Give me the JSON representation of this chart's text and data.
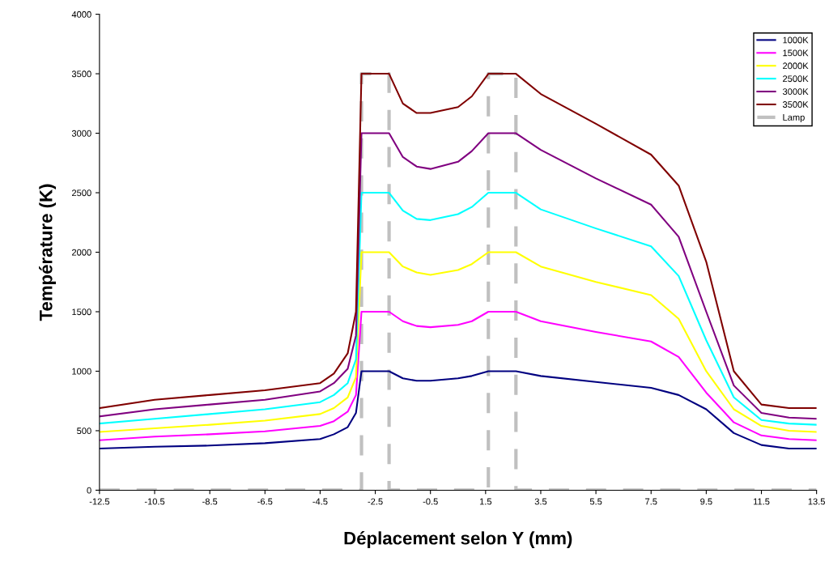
{
  "chart_data": {
    "type": "line",
    "xlabel": "Déplacement selon Y (mm)",
    "ylabel": "Température (K)",
    "x": [
      -12.5,
      -10.5,
      -8.5,
      -6.5,
      -4.5,
      -4,
      -3.5,
      -3.2,
      -3,
      -2,
      -1.5,
      -1,
      -0.5,
      0.5,
      1,
      1.6,
      2.6,
      3.5,
      5.5,
      7.5,
      8.5,
      9.5,
      10.5,
      11.5,
      12.5,
      13.5
    ],
    "series": [
      {
        "name": "1000K",
        "color": "#000080",
        "values": [
          350,
          365,
          375,
          395,
          430,
          470,
          530,
          650,
          1000,
          1000,
          940,
          920,
          920,
          940,
          960,
          1000,
          1000,
          960,
          910,
          860,
          800,
          680,
          480,
          380,
          350,
          350
        ]
      },
      {
        "name": "1500K",
        "color": "#ff00ff",
        "values": [
          420,
          450,
          470,
          495,
          540,
          580,
          660,
          800,
          1500,
          1500,
          1420,
          1380,
          1370,
          1390,
          1420,
          1500,
          1500,
          1420,
          1330,
          1250,
          1120,
          820,
          570,
          460,
          430,
          420
        ]
      },
      {
        "name": "2000K",
        "color": "#ffff00",
        "values": [
          490,
          520,
          550,
          585,
          640,
          690,
          780,
          950,
          2000,
          2000,
          1880,
          1830,
          1810,
          1850,
          1900,
          2000,
          2000,
          1880,
          1750,
          1640,
          1440,
          1000,
          680,
          540,
          500,
          490
        ]
      },
      {
        "name": "2500K",
        "color": "#00ffff",
        "values": [
          560,
          600,
          640,
          680,
          740,
          800,
          900,
          1100,
          2500,
          2500,
          2350,
          2280,
          2270,
          2320,
          2380,
          2500,
          2500,
          2360,
          2200,
          2050,
          1800,
          1260,
          780,
          590,
          560,
          550
        ]
      },
      {
        "name": "3000K",
        "color": "#800080",
        "values": [
          620,
          680,
          720,
          760,
          830,
          900,
          1020,
          1300,
          3000,
          3000,
          2800,
          2720,
          2700,
          2760,
          2850,
          3000,
          3000,
          2860,
          2620,
          2400,
          2130,
          1500,
          880,
          650,
          610,
          600
        ]
      },
      {
        "name": "3500K",
        "color": "#800000",
        "values": [
          690,
          760,
          800,
          840,
          900,
          980,
          1150,
          1500,
          3500,
          3500,
          3250,
          3170,
          3170,
          3220,
          3310,
          3500,
          3500,
          3330,
          3080,
          2820,
          2560,
          1920,
          1000,
          720,
          690,
          690
        ]
      },
      {
        "name": "Lamp",
        "color": "#c0c0c0",
        "line_style": "dashed",
        "x": [
          -12.5,
          -3,
          -3,
          -2,
          -2,
          1.6,
          1.6,
          2.6,
          2.6,
          13.5
        ],
        "values": [
          0,
          0,
          3500,
          3500,
          0,
          0,
          3500,
          3500,
          0,
          0
        ]
      }
    ],
    "xlim": [
      -12.5,
      13.5
    ],
    "xticks": [
      -12.5,
      -10.5,
      -8.5,
      -6.5,
      -4.5,
      -2.5,
      -0.5,
      1.5,
      3.5,
      5.5,
      7.5,
      9.5,
      11.5,
      13.5
    ],
    "ylim": [
      0,
      4000
    ],
    "yticks": [
      0,
      500,
      1000,
      1500,
      2000,
      2500,
      3000,
      3500,
      4000
    ],
    "legend": "top right",
    "marker": "none",
    "line_style": "solid"
  }
}
